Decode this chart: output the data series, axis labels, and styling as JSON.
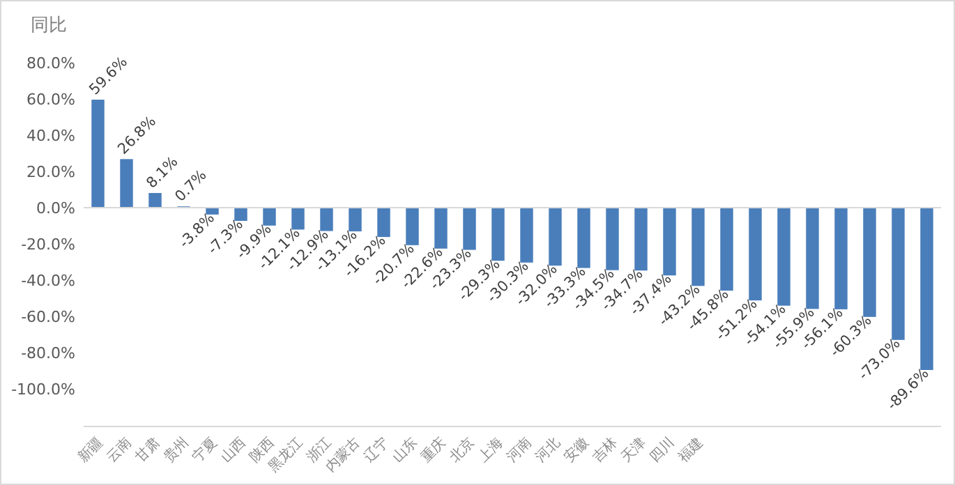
{
  "chart_data": {
    "type": "bar",
    "ylabel": "同比",
    "categories": [
      "新疆",
      "云南",
      "甘肃",
      "贵州",
      "宁夏",
      "山西",
      "陕西",
      "黑龙江",
      "浙江",
      "内蒙古",
      "辽宁",
      "山东",
      "重庆",
      "北京",
      "上海",
      "河南",
      "河北",
      "安徽",
      "吉林",
      "天津",
      "四川",
      "福建",
      null,
      null,
      null,
      null,
      null,
      null,
      null,
      null
    ],
    "values": [
      59.6,
      26.8,
      8.1,
      0.7,
      -3.8,
      -7.3,
      -9.9,
      -12.1,
      -12.9,
      -13.1,
      -16.2,
      -20.7,
      -22.6,
      -23.3,
      -29.3,
      -30.3,
      -32.0,
      -33.3,
      -34.5,
      -34.7,
      -37.4,
      -43.2,
      -45.8,
      -51.2,
      -54.1,
      -55.9,
      -56.1,
      -60.3,
      -73.0,
      -89.6
    ],
    "value_labels": [
      "59.6%",
      "26.8%",
      "8.1%",
      "0.7%",
      "-3.8%",
      "-7.3%",
      "-9.9%",
      "-12.1%",
      "-12.9%",
      "-13.1%",
      "-16.2%",
      "-20.7%",
      "-22.6%",
      "-23.3%",
      "-29.3%",
      "-30.3%",
      "-32.0%",
      "-33.3%",
      "-34.5%",
      "-34.7%",
      "-37.4%",
      "-43.2%",
      "-45.8%",
      "-51.2%",
      "-54.1%",
      "-55.9%",
      "-56.1%",
      "-60.3%",
      "-73.0%",
      "-89.6%"
    ],
    "color": "#4a7ebb",
    "ylim": [
      -100,
      80
    ],
    "yticks": [
      {
        "value": -100,
        "label": "-100.0%"
      },
      {
        "value": -80,
        "label": "-80.0%"
      },
      {
        "value": -60,
        "label": "-60.0%"
      },
      {
        "value": -40,
        "label": "-40.0%"
      },
      {
        "value": -20,
        "label": "-20.0%"
      },
      {
        "value": 0,
        "label": "0.0%"
      },
      {
        "value": 20,
        "label": "20.0%"
      },
      {
        "value": 40,
        "label": "40.0%"
      },
      {
        "value": 60,
        "label": "60.0%"
      },
      {
        "value": 80,
        "label": "80.0%"
      }
    ]
  }
}
